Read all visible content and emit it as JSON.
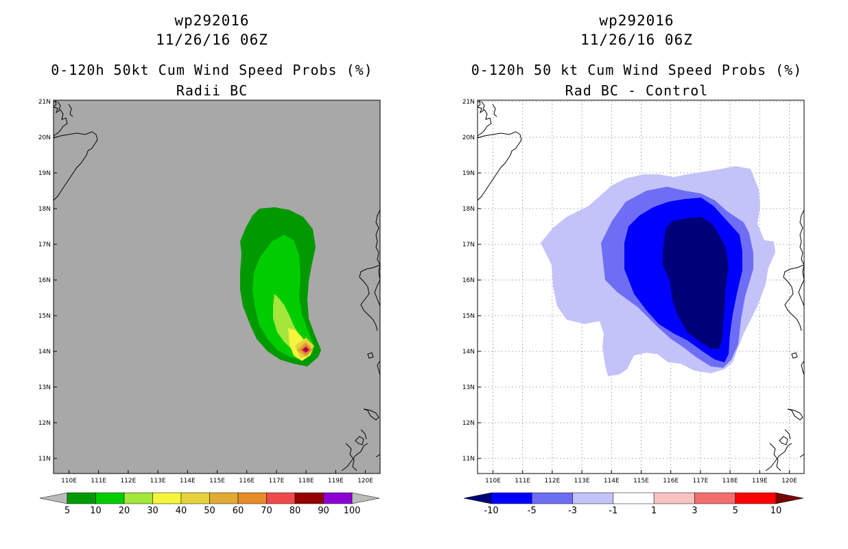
{
  "panels": [
    {
      "storm_id": "wp292016",
      "datetime": "11/26/16 06Z",
      "product": "0-120h 50kt Cum Wind Speed Probs (%)",
      "subtitle": "Radii BC",
      "colorbar_labels": [
        "5",
        "10",
        "20",
        "30",
        "40",
        "50",
        "60",
        "70",
        "80",
        "90",
        "100"
      ],
      "colorbar_colors": [
        "#009a00",
        "#00cd00",
        "#a3e63c",
        "#f5f53c",
        "#e6d23c",
        "#e1aa32",
        "#e68c28",
        "#f04b4b",
        "#960000",
        "#8c00d2"
      ],
      "end_left": "#bbbbbb",
      "end_right": "#bbbbbb",
      "background": "#a8a8a8"
    },
    {
      "storm_id": "wp292016",
      "datetime": "11/26/16 06Z",
      "product": "0-120h 50 kt Cum Wind Speed Probs (%)",
      "subtitle": "Rad BC - Control",
      "colorbar_labels": [
        "-10",
        "-5",
        "-3",
        "-1",
        "1",
        "3",
        "5",
        "10"
      ],
      "colorbar_colors": [
        "#0000ff",
        "#6e6ef5",
        "#c3c3fa",
        "#ffffff",
        "#fac3c3",
        "#f56e6e",
        "#ff0000"
      ],
      "end_left": "#000078",
      "end_right": "#780000",
      "background": "#ffffff"
    }
  ],
  "lon_labels": [
    "110E",
    "111E",
    "112E",
    "113E",
    "114E",
    "115E",
    "116E",
    "117E",
    "118E",
    "119E",
    "120E"
  ],
  "lat_labels": [
    "21N",
    "20N",
    "19N",
    "18N",
    "17N",
    "16N",
    "15N",
    "14N",
    "13N",
    "12N",
    "11N"
  ],
  "contour_colors": {
    "p5": "#009a00",
    "p10": "#00cd00",
    "p20": "#a3e63c",
    "p30": "#f5f53c",
    "p40": "#e6d23c",
    "p50": "#e1aa32",
    "p60": "#e68c28",
    "p70": "#f04b4b",
    "p80": "#960000",
    "p90": "#8c00d2",
    "d1": "#c3c3fa",
    "d3": "#6e6ef5",
    "d5": "#0000ff",
    "d10": "#000078"
  }
}
